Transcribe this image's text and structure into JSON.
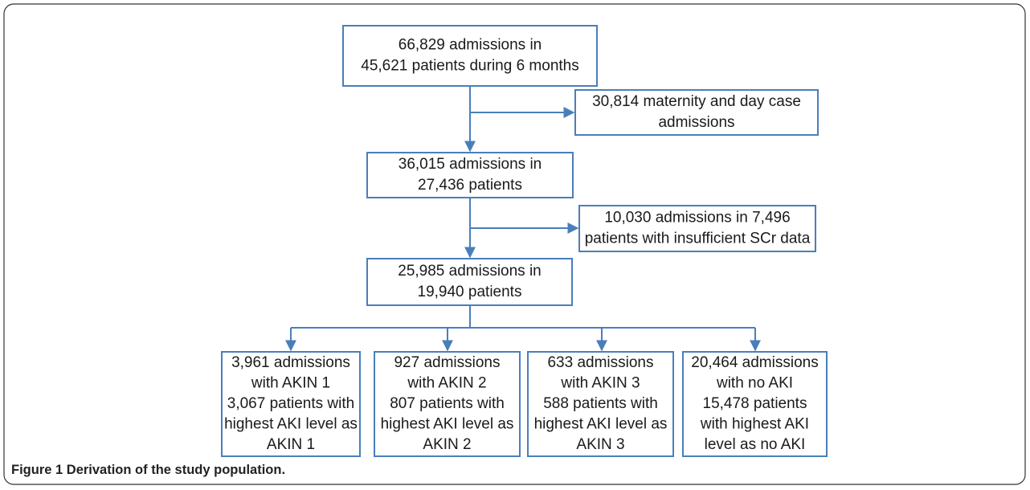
{
  "nodes": [
    {
      "lines": [
        "66,829 admissions in",
        "45,621 patients during 6 months"
      ]
    },
    {
      "lines": [
        "30,814 maternity and day case",
        "admissions"
      ]
    },
    {
      "lines": [
        "36,015 admissions in",
        "27,436 patients"
      ]
    },
    {
      "lines": [
        "10,030 admissions in 7,496",
        "patients with insufficient SCr data"
      ]
    },
    {
      "lines": [
        "25,985 admissions in",
        "19,940 patients"
      ]
    },
    {
      "lines": [
        "3,961 admissions",
        "with AKIN 1",
        "3,067 patients with",
        "highest AKI level as",
        "AKIN 1"
      ]
    },
    {
      "lines": [
        "927 admissions",
        "with AKIN 2",
        "807 patients with",
        "highest AKI level as",
        "AKIN 2"
      ]
    },
    {
      "lines": [
        "633 admissions",
        "with AKIN 3",
        "588 patients with",
        "highest AKI level as",
        "AKIN 3"
      ]
    },
    {
      "lines": [
        "20,464 admissions",
        "with no AKI",
        "15,478 patients",
        "with highest AKI",
        "level as no AKI"
      ]
    }
  ],
  "caption": {
    "label": "Figure 1",
    "text": "Derivation of the study population."
  }
}
